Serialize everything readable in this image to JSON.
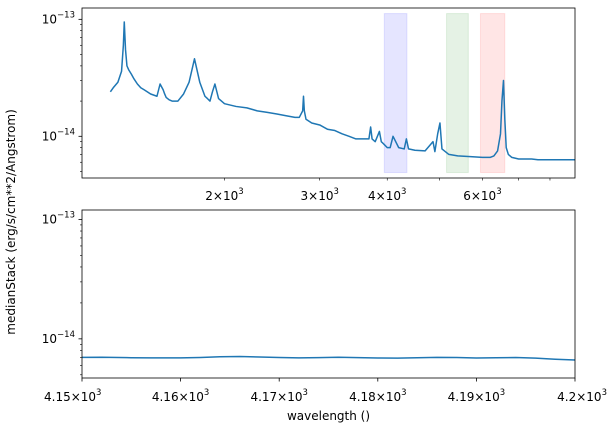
{
  "chart_data": [
    {
      "type": "line",
      "panel": "top",
      "xscale": "log",
      "yscale": "log",
      "xlim": [
        1090,
        8900
      ],
      "ylim": [
        4.4e-15,
        1.25e-13
      ],
      "x_tick_labels": [
        {
          "value": 2000,
          "base": "2×10",
          "exp": "3"
        },
        {
          "value": 3000,
          "base": "3×10",
          "exp": "3"
        },
        {
          "value": 4000,
          "base": "4×10",
          "exp": "3"
        },
        {
          "value": 6000,
          "base": "6×10",
          "exp": "3"
        }
      ],
      "y_tick_labels": [
        {
          "value": 1e-13,
          "base": "10",
          "exp": "−13"
        },
        {
          "value": 1e-14,
          "base": "10",
          "exp": "−14"
        }
      ],
      "bands": [
        {
          "x0": 3950,
          "x1": 4350,
          "color": "#0000ff"
        },
        {
          "x0": 5150,
          "x1": 5650,
          "color": "#008000"
        },
        {
          "x0": 5950,
          "x1": 6600,
          "color": "#ff0000"
        }
      ],
      "series": [
        {
          "color": "#1f77b4",
          "x": [
            1230,
            1245,
            1270,
            1290,
            1300,
            1305,
            1312,
            1320,
            1330,
            1345,
            1360,
            1380,
            1400,
            1420,
            1440,
            1460,
            1480,
            1500,
            1520,
            1540,
            1550,
            1560,
            1580,
            1600,
            1640,
            1680,
            1720,
            1760,
            1800,
            1840,
            1860,
            1880,
            1900,
            1920,
            1950,
            2000,
            2100,
            2200,
            2300,
            2400,
            2500,
            2600,
            2700,
            2750,
            2790,
            2800,
            2810,
            2830,
            2900,
            3000,
            3100,
            3200,
            3300,
            3400,
            3500,
            3600,
            3700,
            3727,
            3750,
            3800,
            3869,
            3900,
            3950,
            4000,
            4050,
            4100,
            4200,
            4300,
            4340,
            4380,
            4500,
            4700,
            4861,
            4900,
            4959,
            5007,
            5050,
            5200,
            5400,
            5700,
            6000,
            6200,
            6300,
            6400,
            6480,
            6520,
            6563,
            6600,
            6640,
            6700,
            6800,
            7000,
            7200,
            7400,
            7600,
            7800,
            8000,
            8300,
            8600,
            8900
          ],
          "y": [
            2.4e-14,
            2.6e-14,
            2.9e-14,
            3.6e-14,
            6e-14,
            9.5e-14,
            5.5e-14,
            4e-14,
            3.7e-14,
            3.4e-14,
            3.1e-14,
            2.8e-14,
            2.6e-14,
            2.5e-14,
            2.4e-14,
            2.3e-14,
            2.25e-14,
            2.2e-14,
            2.8e-14,
            2.5e-14,
            2.3e-14,
            2.15e-14,
            2.05e-14,
            2e-14,
            2e-14,
            2.3e-14,
            2.9e-14,
            4.6e-14,
            2.9e-14,
            2.2e-14,
            2.1e-14,
            2e-14,
            2.4e-14,
            2.8e-14,
            2.1e-14,
            1.9e-14,
            1.8e-14,
            1.75e-14,
            1.65e-14,
            1.6e-14,
            1.55e-14,
            1.5e-14,
            1.45e-14,
            1.45e-14,
            1.65e-14,
            2.2e-14,
            1.65e-14,
            1.4e-14,
            1.3e-14,
            1.25e-14,
            1.15e-14,
            1.12e-14,
            1.05e-14,
            1e-14,
            9.5e-15,
            9.5e-15,
            9.5e-15,
            1.2e-14,
            9.5e-15,
            9e-15,
            1.1e-14,
            9e-15,
            8.5e-15,
            8e-15,
            8e-15,
            1e-14,
            8e-15,
            7.8e-15,
            9.5e-15,
            7.8e-15,
            7.6e-15,
            7.5e-15,
            9e-15,
            7.4e-15,
            1.05e-14,
            1.3e-14,
            7.8e-15,
            7e-15,
            6.8e-15,
            6.7e-15,
            6.6e-15,
            6.6e-15,
            6.8e-15,
            7.5e-15,
            1.05e-14,
            2e-14,
            3e-14,
            1.4e-14,
            8e-15,
            7e-15,
            6.6e-15,
            6.4e-15,
            6.4e-15,
            6.4e-15,
            6.3e-15,
            6.3e-15,
            6.3e-15,
            6.3e-15,
            6.3e-15,
            6.3e-15
          ]
        }
      ]
    },
    {
      "type": "line",
      "panel": "bottom",
      "xscale": "linear",
      "yscale": "log",
      "xlim": [
        4150,
        4200
      ],
      "ylim": [
        4.7e-15,
        1.2e-13
      ],
      "xlabel": "wavelength ()",
      "x_tick_labels": [
        {
          "value": 4150,
          "base": "4.15×10",
          "exp": "3"
        },
        {
          "value": 4160,
          "base": "4.16×10",
          "exp": "3"
        },
        {
          "value": 4170,
          "base": "4.17×10",
          "exp": "3"
        },
        {
          "value": 4180,
          "base": "4.18×10",
          "exp": "3"
        },
        {
          "value": 4190,
          "base": "4.19×10",
          "exp": "3"
        },
        {
          "value": 4200,
          "base": "4.2×10",
          "exp": "3"
        }
      ],
      "y_tick_labels": [
        {
          "value": 1e-13,
          "base": "10",
          "exp": "−13"
        },
        {
          "value": 1e-14,
          "base": "10",
          "exp": "−14"
        }
      ],
      "series": [
        {
          "color": "#1f77b4",
          "x": [
            4150,
            4152,
            4155,
            4157,
            4160,
            4162,
            4164,
            4166,
            4168,
            4170,
            4172,
            4174,
            4176,
            4178,
            4180,
            4182,
            4184,
            4186,
            4188,
            4190,
            4192,
            4194,
            4196,
            4198,
            4200
          ],
          "y": [
            7e-15,
            7.02e-15,
            6.95e-15,
            6.93e-15,
            6.93e-15,
            6.98e-15,
            7.08e-15,
            7.12e-15,
            7.05e-15,
            6.98e-15,
            6.93e-15,
            6.96e-15,
            7.01e-15,
            6.97e-15,
            6.92e-15,
            6.9e-15,
            6.94e-15,
            6.99e-15,
            6.98e-15,
            6.92e-15,
            6.95e-15,
            6.98e-15,
            6.9e-15,
            6.75e-15,
            6.65e-15
          ]
        }
      ]
    }
  ],
  "ylabel": "medianStack (erg/s/cm**2/Angstrom)"
}
